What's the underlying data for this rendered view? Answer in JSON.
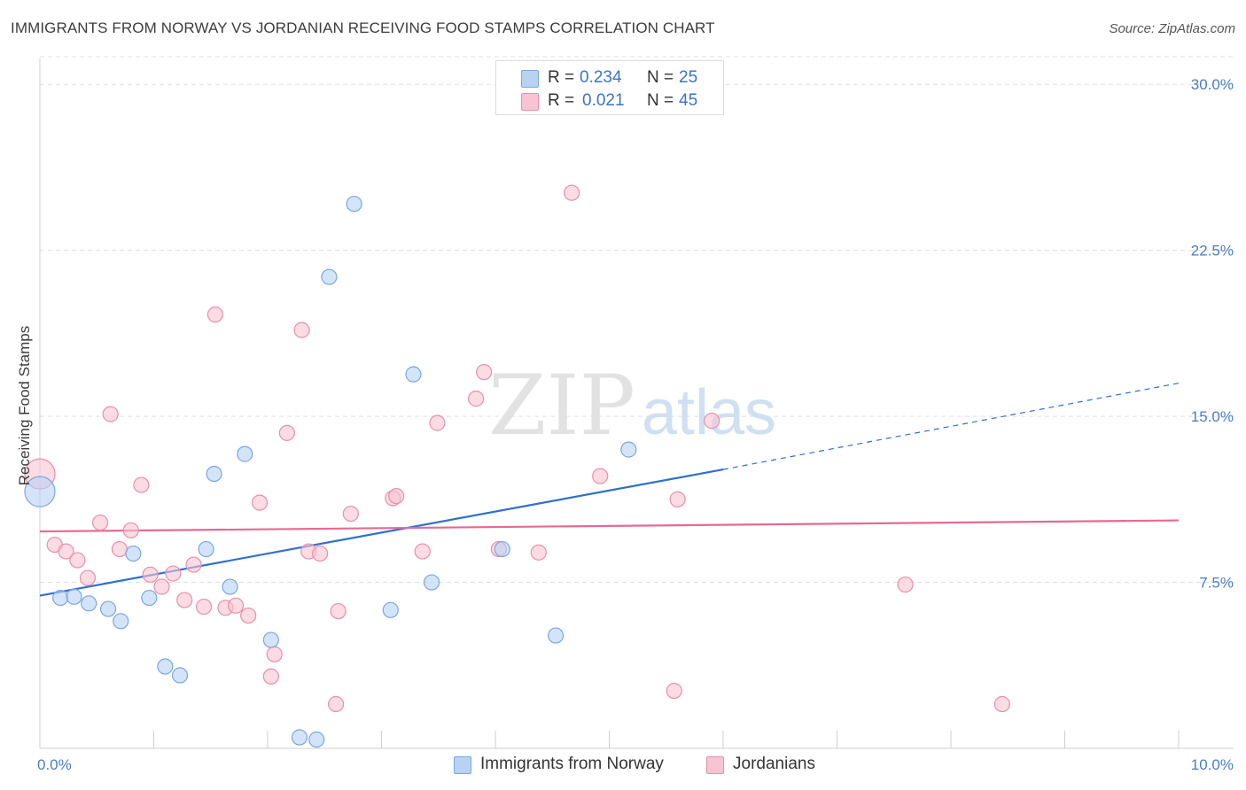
{
  "title": "IMMIGRANTS FROM NORWAY VS JORDANIAN RECEIVING FOOD STAMPS CORRELATION CHART",
  "source": "Source: ZipAtlas.com",
  "watermark": {
    "zip": "ZIP",
    "atlas": "atlas"
  },
  "colors": {
    "blue_fill": "#b8d2f4",
    "blue_stroke": "#7aa6e0",
    "blue_line": "#2f6fcf",
    "pink_fill": "#f8c3d2",
    "pink_stroke": "#e98fab",
    "pink_line": "#e56a92",
    "tick": "#4a7cc4",
    "grid": "#e0e0e0"
  },
  "legend_top": {
    "rows": [
      {
        "r_label": "R =",
        "r_value": "0.234",
        "n_label": "N =",
        "n_value": "25",
        "series": "blue"
      },
      {
        "r_label": "R =",
        "r_value": "0.021",
        "n_label": "N =",
        "n_value": "45",
        "series": "pink"
      }
    ]
  },
  "legend_bottom": [
    {
      "label": "Immigrants from Norway",
      "series": "blue"
    },
    {
      "label": "Jordanians",
      "series": "pink"
    }
  ],
  "chart_data": {
    "type": "scatter",
    "title": "IMMIGRANTS FROM NORWAY VS JORDANIAN RECEIVING FOOD STAMPS CORRELATION CHART",
    "xlabel": "",
    "ylabel": "Receiving Food Stamps",
    "xlim": [
      0,
      10
    ],
    "ylim": [
      0,
      31.25
    ],
    "x_tick_labels": [
      {
        "value": 0,
        "label": "0.0%"
      },
      {
        "value": 10,
        "label": "10.0%"
      }
    ],
    "y_tick_labels": [
      {
        "value": 7.5,
        "label": "7.5%"
      },
      {
        "value": 15,
        "label": "15.0%"
      },
      {
        "value": 22.5,
        "label": "22.5%"
      },
      {
        "value": 30,
        "label": "30.0%"
      }
    ],
    "series": [
      {
        "name": "Immigrants from Norway",
        "color": "blue",
        "R": 0.234,
        "N": 25,
        "trend": {
          "x0": 0,
          "y0": 6.9,
          "x1": 6.0,
          "y1": 12.6,
          "dash_to_x": 10,
          "dash_to_y": 16.5
        },
        "points": [
          {
            "x": 0.0,
            "y": 11.6,
            "big": true
          },
          {
            "x": 0.18,
            "y": 6.8
          },
          {
            "x": 0.3,
            "y": 6.85
          },
          {
            "x": 0.43,
            "y": 6.55
          },
          {
            "x": 0.6,
            "y": 6.3
          },
          {
            "x": 0.71,
            "y": 5.75
          },
          {
            "x": 0.82,
            "y": 8.8
          },
          {
            "x": 0.96,
            "y": 6.8
          },
          {
            "x": 1.1,
            "y": 3.7
          },
          {
            "x": 1.23,
            "y": 3.3
          },
          {
            "x": 1.46,
            "y": 9.0
          },
          {
            "x": 1.53,
            "y": 12.4
          },
          {
            "x": 1.67,
            "y": 7.3
          },
          {
            "x": 1.8,
            "y": 13.3
          },
          {
            "x": 2.03,
            "y": 4.9
          },
          {
            "x": 2.28,
            "y": 0.5
          },
          {
            "x": 2.43,
            "y": 0.4
          },
          {
            "x": 2.54,
            "y": 21.3
          },
          {
            "x": 2.76,
            "y": 24.6
          },
          {
            "x": 3.08,
            "y": 6.25
          },
          {
            "x": 3.28,
            "y": 16.9
          },
          {
            "x": 3.44,
            "y": 7.5
          },
          {
            "x": 4.06,
            "y": 9.0
          },
          {
            "x": 4.53,
            "y": 5.1
          },
          {
            "x": 5.17,
            "y": 13.5
          }
        ]
      },
      {
        "name": "Jordanians",
        "color": "pink",
        "R": 0.021,
        "N": 45,
        "trend": {
          "x0": 0,
          "y0": 9.8,
          "x1": 10,
          "y1": 10.3
        },
        "points": [
          {
            "x": 0.0,
            "y": 12.4,
            "big": true
          },
          {
            "x": 0.13,
            "y": 9.2
          },
          {
            "x": 0.23,
            "y": 8.9
          },
          {
            "x": 0.33,
            "y": 8.5
          },
          {
            "x": 0.42,
            "y": 7.7
          },
          {
            "x": 0.53,
            "y": 10.2
          },
          {
            "x": 0.62,
            "y": 15.1
          },
          {
            "x": 0.7,
            "y": 9.0
          },
          {
            "x": 0.8,
            "y": 9.85
          },
          {
            "x": 0.89,
            "y": 11.9
          },
          {
            "x": 0.97,
            "y": 7.85
          },
          {
            "x": 1.07,
            "y": 7.3
          },
          {
            "x": 1.17,
            "y": 7.9
          },
          {
            "x": 1.27,
            "y": 6.7
          },
          {
            "x": 1.35,
            "y": 8.3
          },
          {
            "x": 1.44,
            "y": 6.4
          },
          {
            "x": 1.54,
            "y": 19.6
          },
          {
            "x": 1.63,
            "y": 6.35
          },
          {
            "x": 1.72,
            "y": 6.45
          },
          {
            "x": 1.83,
            "y": 6.0
          },
          {
            "x": 1.93,
            "y": 11.1
          },
          {
            "x": 2.03,
            "y": 3.25
          },
          {
            "x": 2.06,
            "y": 4.25
          },
          {
            "x": 2.17,
            "y": 14.25
          },
          {
            "x": 2.3,
            "y": 18.9
          },
          {
            "x": 2.36,
            "y": 8.9
          },
          {
            "x": 2.46,
            "y": 8.8
          },
          {
            "x": 2.6,
            "y": 2.0
          },
          {
            "x": 2.62,
            "y": 6.2
          },
          {
            "x": 2.73,
            "y": 10.6
          },
          {
            "x": 3.1,
            "y": 11.3
          },
          {
            "x": 3.13,
            "y": 11.4
          },
          {
            "x": 3.36,
            "y": 8.9
          },
          {
            "x": 3.49,
            "y": 14.7
          },
          {
            "x": 3.83,
            "y": 15.8
          },
          {
            "x": 3.9,
            "y": 17.0
          },
          {
            "x": 4.03,
            "y": 9.0
          },
          {
            "x": 4.38,
            "y": 8.85
          },
          {
            "x": 4.67,
            "y": 25.1
          },
          {
            "x": 4.92,
            "y": 12.3
          },
          {
            "x": 5.57,
            "y": 2.6
          },
          {
            "x": 5.6,
            "y": 11.25
          },
          {
            "x": 5.9,
            "y": 14.8
          },
          {
            "x": 7.6,
            "y": 7.4
          },
          {
            "x": 8.45,
            "y": 2.0
          }
        ]
      }
    ]
  }
}
